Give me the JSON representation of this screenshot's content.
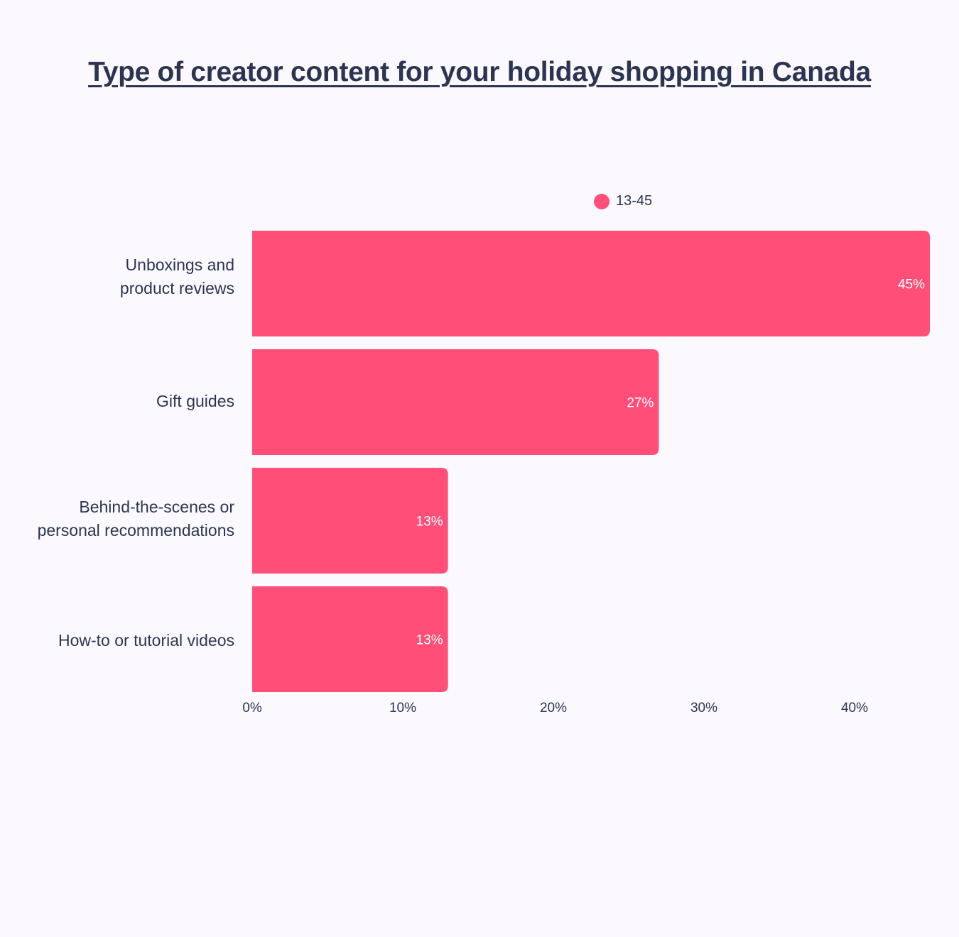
{
  "title": "Type of creator content for your holiday shopping in Canada",
  "colors": {
    "bar": "#FF4E77",
    "text": "#2B3551",
    "background": "#FBF9FE"
  },
  "chart_data": {
    "type": "bar",
    "orientation": "horizontal",
    "title": "Type of creator content for your holiday shopping in Canada",
    "categories": [
      "Unboxings and\nproduct reviews",
      "Gift guides",
      "Behind-the-scenes or\npersonal recommendations",
      "How-to or tutorial videos"
    ],
    "series": [
      {
        "name": "13-45",
        "values": [
          45,
          27,
          13,
          13
        ],
        "labels": [
          "45%",
          "27%",
          "13%",
          "13%"
        ]
      }
    ],
    "xticks": [
      "0%",
      "10%",
      "20%",
      "30%",
      "40%"
    ],
    "xlim": [
      0,
      45
    ],
    "grid": false,
    "legend_position": "top"
  }
}
